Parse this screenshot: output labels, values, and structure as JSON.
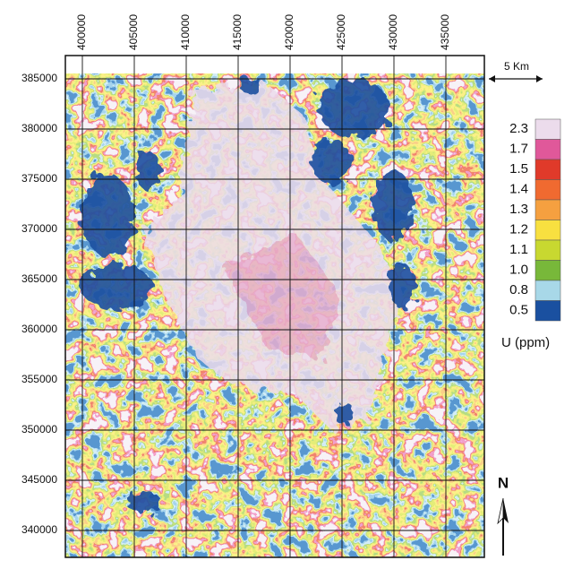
{
  "map": {
    "x_ticks": [
      400000,
      405000,
      410000,
      415000,
      420000,
      425000,
      430000,
      435000
    ],
    "y_ticks": [
      385000,
      380000,
      375000,
      370000,
      365000,
      360000,
      355000,
      350000,
      345000,
      340000
    ],
    "scale_bar": "5 Km",
    "north": "N",
    "legend": {
      "title": "U (ppm)",
      "labels": [
        "2.3",
        "1.7",
        "1.5",
        "1.4",
        "1.3",
        "1.2",
        "1.1",
        "1.0",
        "0.8",
        "0.5"
      ],
      "colors": [
        "#ecdcec",
        "#e0589a",
        "#e03a2a",
        "#f06a30",
        "#f5a040",
        "#f8e040",
        "#c8d830",
        "#78b83a",
        "#a8d8e8",
        "#1a50a0"
      ]
    }
  }
}
